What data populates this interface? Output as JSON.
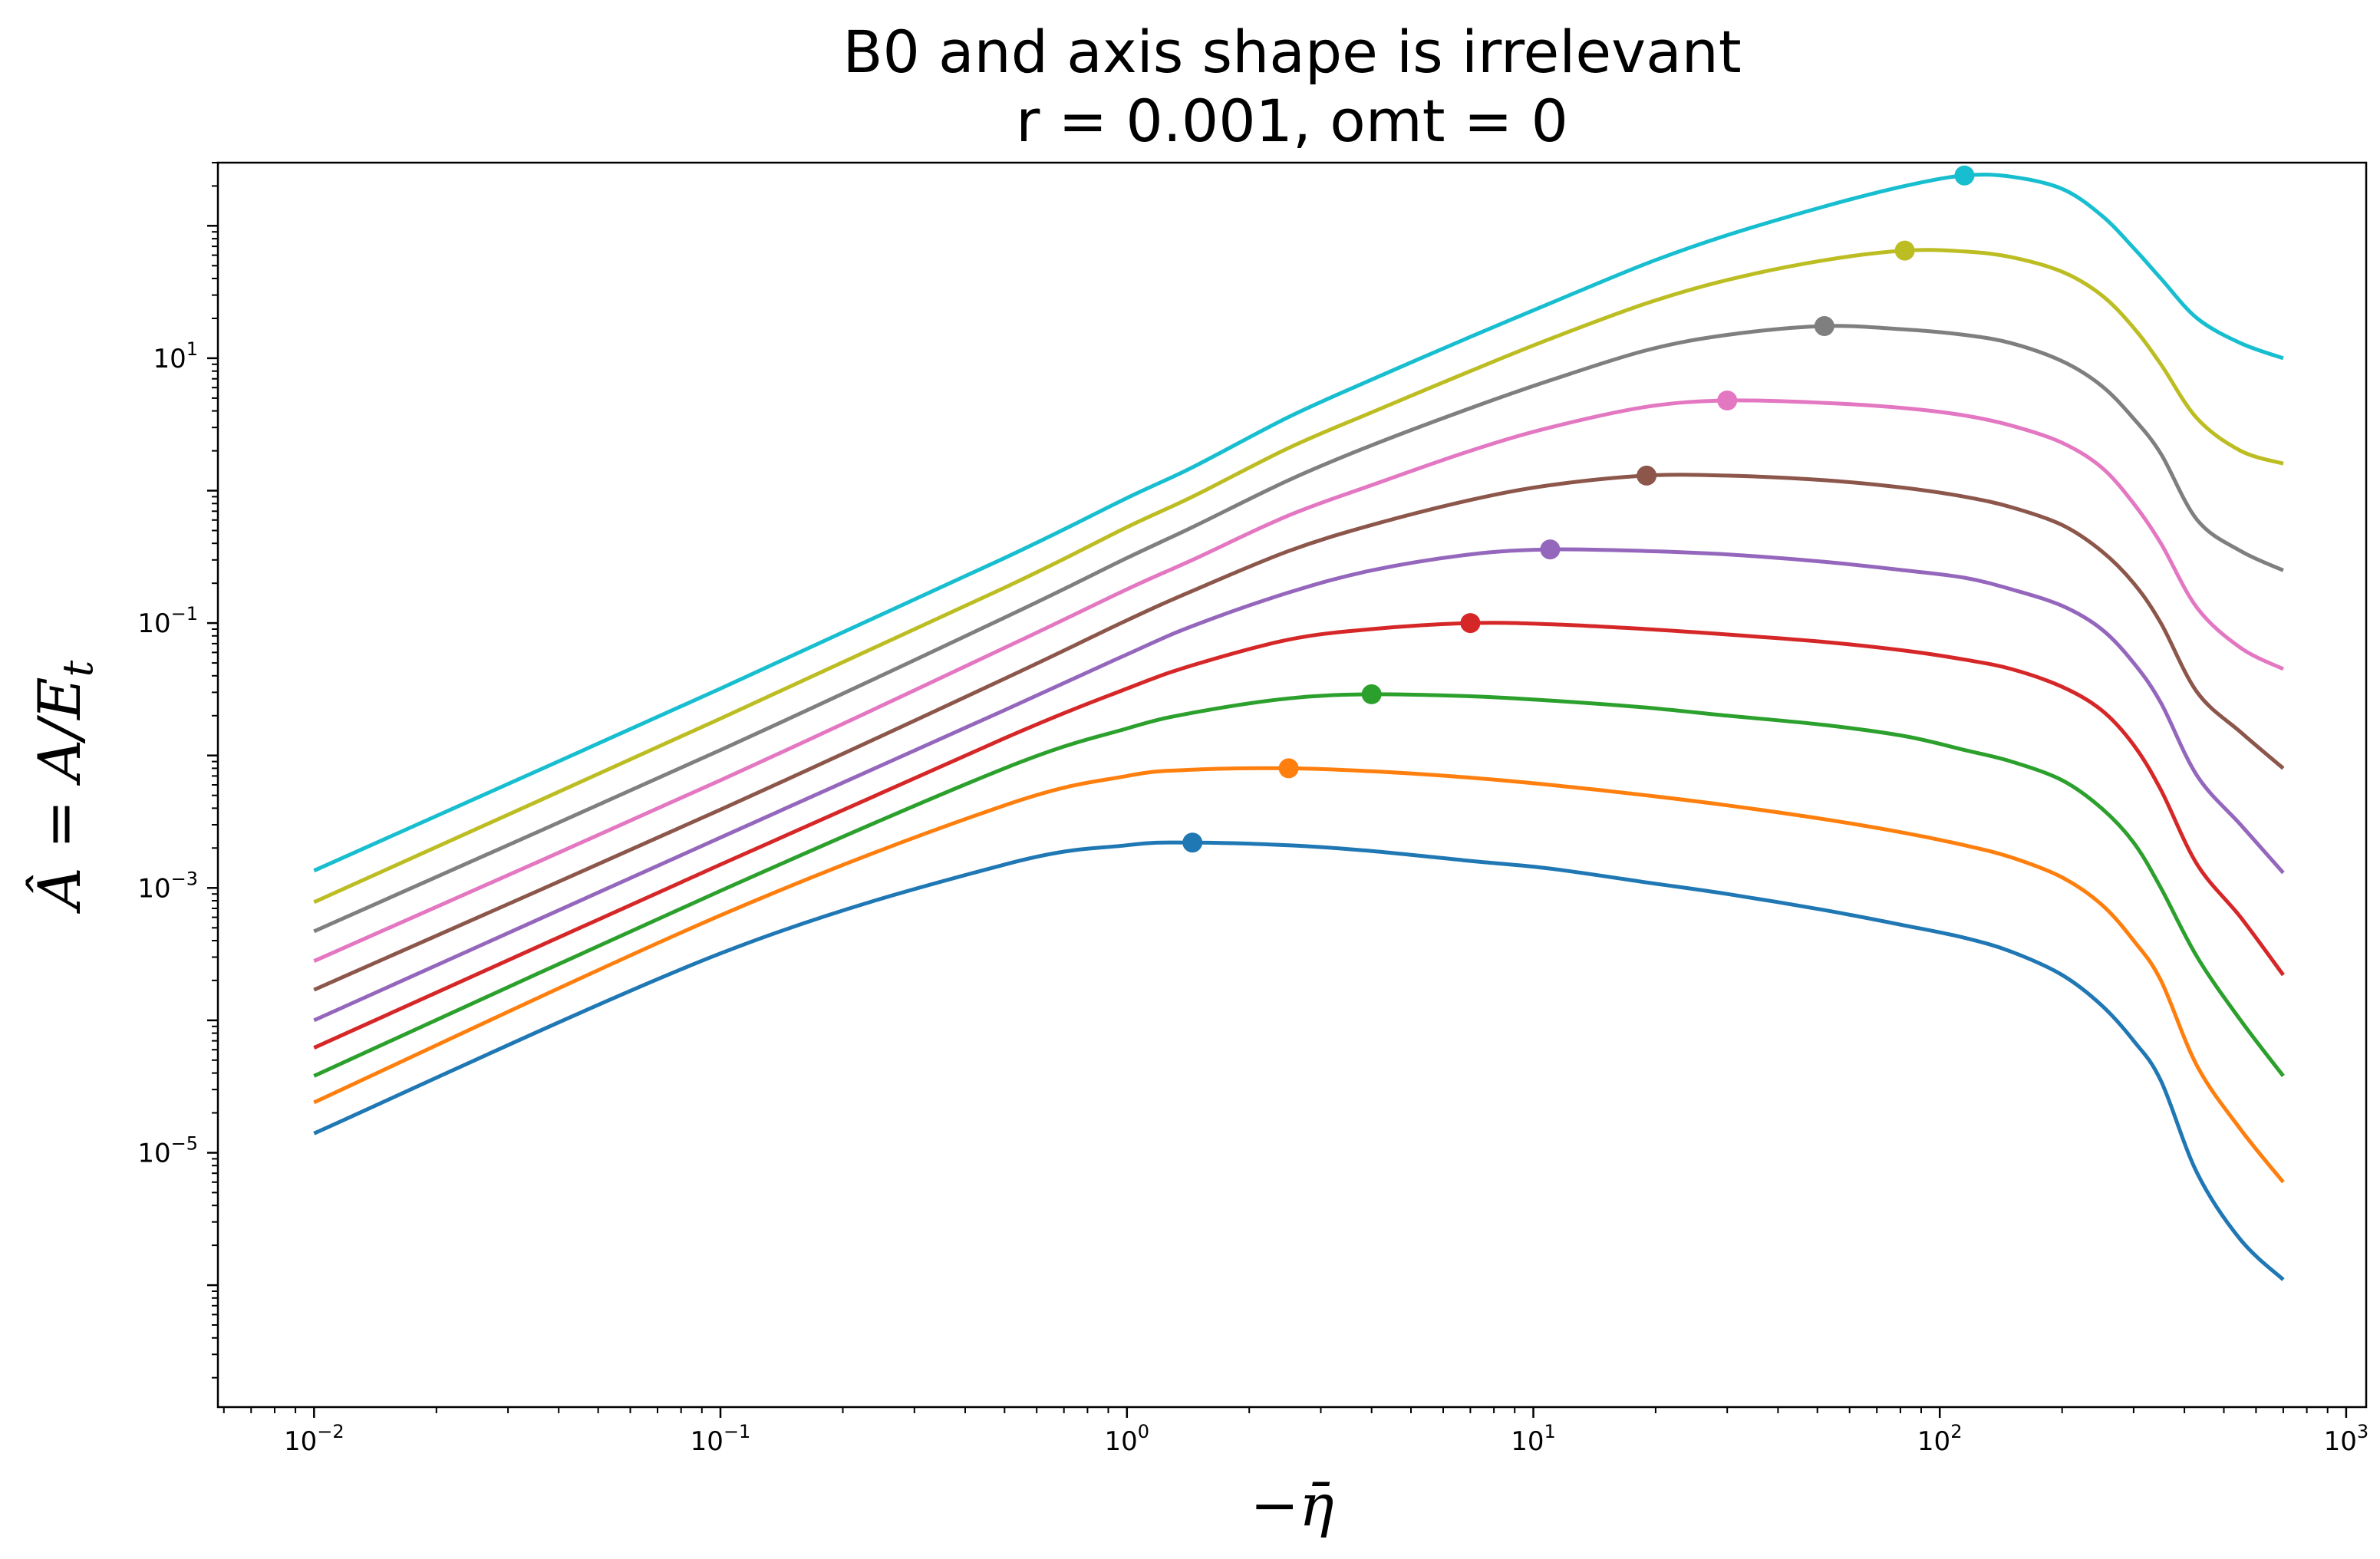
{
  "chart_data": {
    "type": "line",
    "title": "B0 and axis shape is irrelevant",
    "subtitle": "r = 0.001, omt = 0",
    "xlabel": "−η̄",
    "ylabel": "Â = A/E",
    "ylabel_subscript": "t",
    "xscale": "log",
    "yscale": "log",
    "xlim": [
      0.0058,
      1120
    ],
    "ylim": [
      1.2e-07,
      300
    ],
    "grid": false,
    "legend": "none",
    "x_ticks": [
      {
        "mant": "10",
        "exp": "−2",
        "value": 0.01
      },
      {
        "mant": "10",
        "exp": "−1",
        "value": 0.1
      },
      {
        "mant": "10",
        "exp": "0",
        "value": 1
      },
      {
        "mant": "10",
        "exp": "1",
        "value": 10
      },
      {
        "mant": "10",
        "exp": "2",
        "value": 100
      },
      {
        "mant": "10",
        "exp": "3",
        "value": 1000
      }
    ],
    "y_ticks": [
      {
        "mant": "10",
        "exp": "−5",
        "value": 1e-05
      },
      {
        "mant": "10",
        "exp": "−3",
        "value": 0.001
      },
      {
        "mant": "10",
        "exp": "−1",
        "value": 0.1
      },
      {
        "mant": "10",
        "exp": "1",
        "value": 10
      }
    ],
    "x": [
      0.01,
      0.1,
      0.5,
      1.0,
      1.45,
      2.5,
      4.0,
      7.0,
      11.0,
      19.0,
      30.0,
      52.0,
      82.0,
      115.0,
      150.0,
      200.0,
      250.0,
      300.0,
      350.0,
      430.0,
      550.0,
      700.0
    ],
    "series": [
      {
        "color": "#1f77b4",
        "values": [
          1.4e-05,
          0.00032,
          0.0015,
          0.0021,
          0.0022,
          0.0021,
          0.0019,
          0.0016,
          0.0014,
          0.0011,
          0.0009,
          0.00068,
          0.00052,
          0.00042,
          0.00033,
          0.00022,
          0.00013,
          7e-05,
          3.5e-05,
          7e-06,
          2.2e-06,
          1.1e-06
        ],
        "peak_x": 1.45,
        "peak_y": 0.0022
      },
      {
        "color": "#ff7f0e",
        "values": [
          2.4e-05,
          0.00062,
          0.0042,
          0.007,
          0.0078,
          0.008,
          0.0076,
          0.0068,
          0.006,
          0.005,
          0.0042,
          0.0033,
          0.0026,
          0.0021,
          0.0017,
          0.0012,
          0.00075,
          0.0004,
          0.0002,
          4.5e-05,
          1.5e-05,
          6e-06
        ],
        "peak_x": 2.5,
        "peak_y": 0.008
      },
      {
        "color": "#2ca02c",
        "values": [
          3.8e-05,
          0.00095,
          0.008,
          0.016,
          0.021,
          0.027,
          0.029,
          0.028,
          0.026,
          0.023,
          0.02,
          0.017,
          0.014,
          0.011,
          0.009,
          0.0065,
          0.004,
          0.0022,
          0.001,
          0.0003,
          0.0001,
          3.8e-05
        ],
        "peak_x": 4.0,
        "peak_y": 0.029
      },
      {
        "color": "#d62728",
        "values": [
          6.2e-05,
          0.0015,
          0.0135,
          0.032,
          0.048,
          0.075,
          0.09,
          0.1,
          0.098,
          0.09,
          0.082,
          0.072,
          0.062,
          0.053,
          0.045,
          0.033,
          0.022,
          0.012,
          0.0055,
          0.0015,
          0.0006,
          0.00022
        ],
        "peak_x": 7.0,
        "peak_y": 0.1
      },
      {
        "color": "#9467bd",
        "values": [
          0.0001,
          0.0024,
          0.022,
          0.058,
          0.095,
          0.17,
          0.25,
          0.33,
          0.36,
          0.35,
          0.33,
          0.29,
          0.25,
          0.22,
          0.18,
          0.135,
          0.09,
          0.05,
          0.025,
          0.007,
          0.003,
          0.0013
        ],
        "peak_x": 11.0,
        "peak_y": 0.36
      },
      {
        "color": "#8c564b",
        "values": [
          0.00017,
          0.0039,
          0.038,
          0.105,
          0.175,
          0.35,
          0.55,
          0.85,
          1.1,
          1.3,
          1.3,
          1.2,
          1.05,
          0.9,
          0.75,
          0.55,
          0.35,
          0.2,
          0.1,
          0.03,
          0.015,
          0.008
        ],
        "peak_x": 19.0,
        "peak_y": 1.3
      },
      {
        "color": "#e377c2",
        "values": [
          0.00028,
          0.0065,
          0.065,
          0.18,
          0.3,
          0.65,
          1.1,
          2.0,
          3.0,
          4.3,
          4.8,
          4.6,
          4.2,
          3.7,
          3.1,
          2.3,
          1.5,
          0.8,
          0.4,
          0.13,
          0.065,
          0.045
        ],
        "peak_x": 30.0,
        "peak_y": 4.8
      },
      {
        "color": "#7f7f7f",
        "values": [
          0.00047,
          0.011,
          0.11,
          0.31,
          0.53,
          1.2,
          2.2,
          4.2,
          6.8,
          11.5,
          15.0,
          17.5,
          16.5,
          15.0,
          13.0,
          9.5,
          6.2,
          3.5,
          1.9,
          0.6,
          0.35,
          0.25
        ],
        "peak_x": 52.0,
        "peak_y": 17.5
      },
      {
        "color": "#bcbd22",
        "values": [
          0.00078,
          0.019,
          0.185,
          0.53,
          0.9,
          2.1,
          3.9,
          8.0,
          14.0,
          26.0,
          39.0,
          55.0,
          65.0,
          64.0,
          58.0,
          45.0,
          30.0,
          17.0,
          9.0,
          3.5,
          2.0,
          1.6
        ],
        "peak_x": 82.0,
        "peak_y": 65.0
      },
      {
        "color": "#17becf",
        "values": [
          0.00135,
          0.032,
          0.31,
          0.88,
          1.5,
          3.6,
          6.9,
          14.5,
          26.0,
          52.0,
          85.0,
          140.0,
          200.0,
          240.0,
          235.0,
          190.0,
          120.0,
          68.0,
          40.0,
          20.0,
          13.0,
          10.0
        ],
        "peak_x": 115.0,
        "peak_y": 240.0
      }
    ]
  }
}
